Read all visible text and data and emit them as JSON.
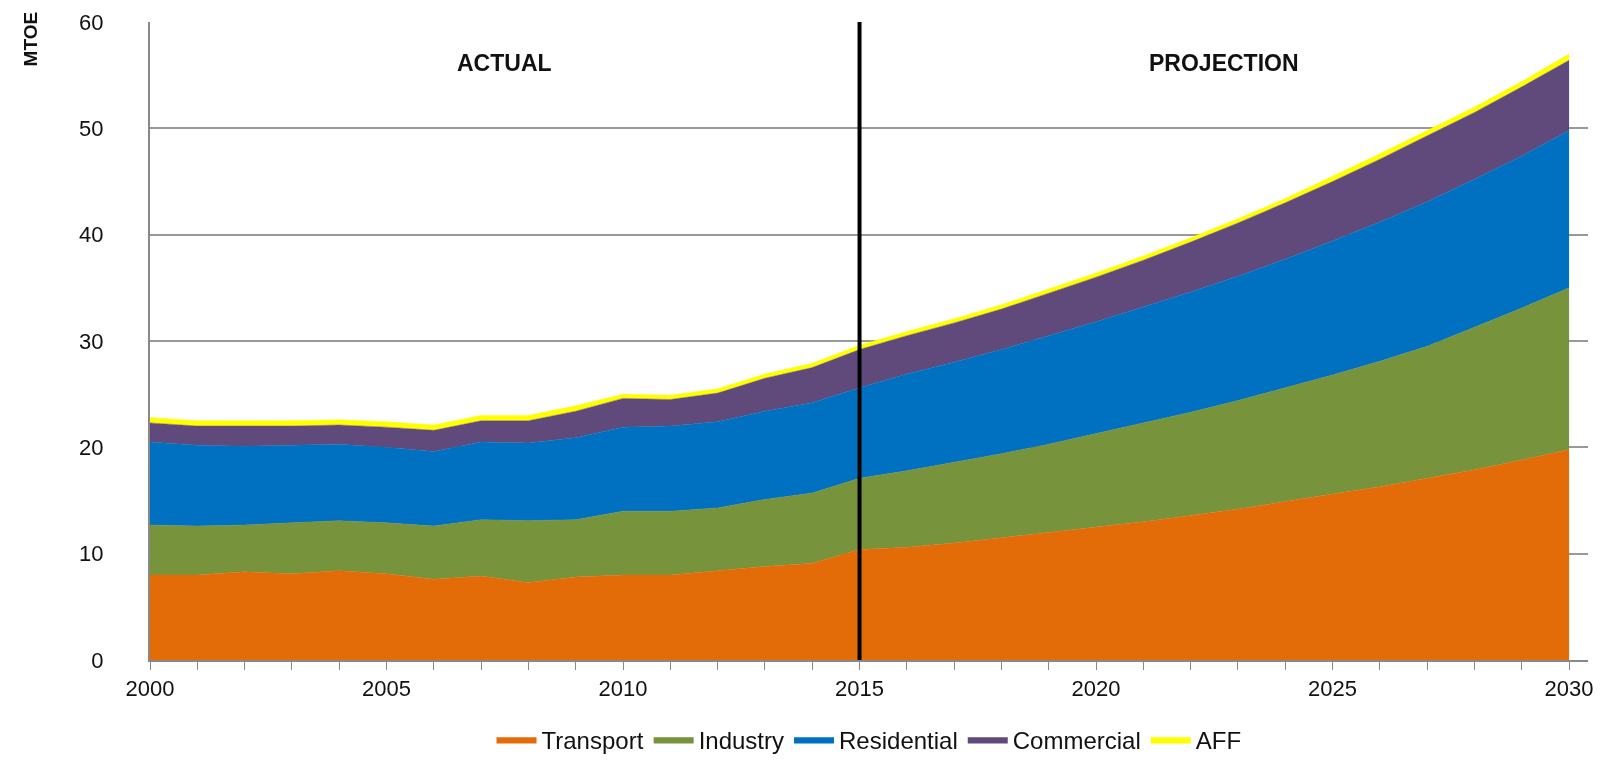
{
  "chart_data": {
    "type": "area",
    "stacked": true,
    "ylabel": "MTOE",
    "x": [
      2000,
      2001,
      2002,
      2003,
      2004,
      2005,
      2006,
      2007,
      2008,
      2009,
      2010,
      2011,
      2012,
      2013,
      2014,
      2015,
      2016,
      2017,
      2018,
      2019,
      2020,
      2021,
      2022,
      2023,
      2024,
      2025,
      2026,
      2027,
      2028,
      2029,
      2030
    ],
    "series": [
      {
        "name": "Transport",
        "color": "#e36c09",
        "values": [
          8.0,
          8.0,
          8.3,
          8.1,
          8.4,
          8.1,
          7.6,
          7.9,
          7.3,
          7.8,
          8.0,
          8.0,
          8.4,
          8.8,
          9.1,
          10.4,
          10.6,
          11.0,
          11.5,
          12.0,
          12.5,
          13.0,
          13.6,
          14.2,
          14.9,
          15.6,
          16.3,
          17.1,
          17.9,
          18.8,
          19.8
        ]
      },
      {
        "name": "Industry",
        "color": "#77933c",
        "values": [
          4.7,
          4.6,
          4.4,
          4.8,
          4.7,
          4.8,
          5.0,
          5.3,
          5.8,
          5.4,
          6.0,
          6.0,
          5.9,
          6.3,
          6.6,
          6.7,
          7.2,
          7.6,
          7.9,
          8.3,
          8.8,
          9.3,
          9.7,
          10.2,
          10.7,
          11.2,
          11.8,
          12.4,
          13.4,
          14.3,
          15.2
        ]
      },
      {
        "name": "Residential",
        "color": "#0070c0",
        "values": [
          7.8,
          7.6,
          7.4,
          7.3,
          7.2,
          7.1,
          7.0,
          7.3,
          7.3,
          7.7,
          7.9,
          8.0,
          8.1,
          8.3,
          8.5,
          8.5,
          9.1,
          9.4,
          9.8,
          10.2,
          10.5,
          10.9,
          11.3,
          11.7,
          12.1,
          12.6,
          13.1,
          13.6,
          13.9,
          14.3,
          14.8
        ]
      },
      {
        "name": "Commercial",
        "color": "#604a7b",
        "values": [
          1.8,
          1.8,
          1.9,
          1.8,
          1.8,
          1.9,
          2.0,
          2.0,
          2.1,
          2.5,
          2.7,
          2.5,
          2.7,
          3.1,
          3.3,
          3.6,
          3.6,
          3.7,
          3.8,
          4.0,
          4.2,
          4.4,
          4.7,
          5.0,
          5.3,
          5.6,
          5.9,
          6.2,
          6.3,
          6.5,
          6.6
        ]
      },
      {
        "name": "AFF",
        "color": "#ffff00",
        "values": [
          0.5,
          0.5,
          0.5,
          0.5,
          0.5,
          0.5,
          0.5,
          0.5,
          0.5,
          0.5,
          0.4,
          0.4,
          0.4,
          0.4,
          0.4,
          0.4,
          0.4,
          0.4,
          0.4,
          0.4,
          0.4,
          0.4,
          0.4,
          0.4,
          0.4,
          0.5,
          0.5,
          0.5,
          0.5,
          0.5,
          0.6
        ]
      }
    ],
    "xlim": [
      2000,
      2030.4
    ],
    "xticks": [
      2000,
      2005,
      2010,
      2015,
      2020,
      2025,
      2030
    ],
    "ylim": [
      0,
      60
    ],
    "yticks": [
      0,
      10,
      20,
      30,
      40,
      50,
      60
    ],
    "grid": "y",
    "legend": "bottom",
    "ref_lines": [
      {
        "axis": "x",
        "value": 2015,
        "color": "#000000"
      }
    ],
    "annotations": [
      "ACTUAL",
      "PROJECTION"
    ]
  }
}
